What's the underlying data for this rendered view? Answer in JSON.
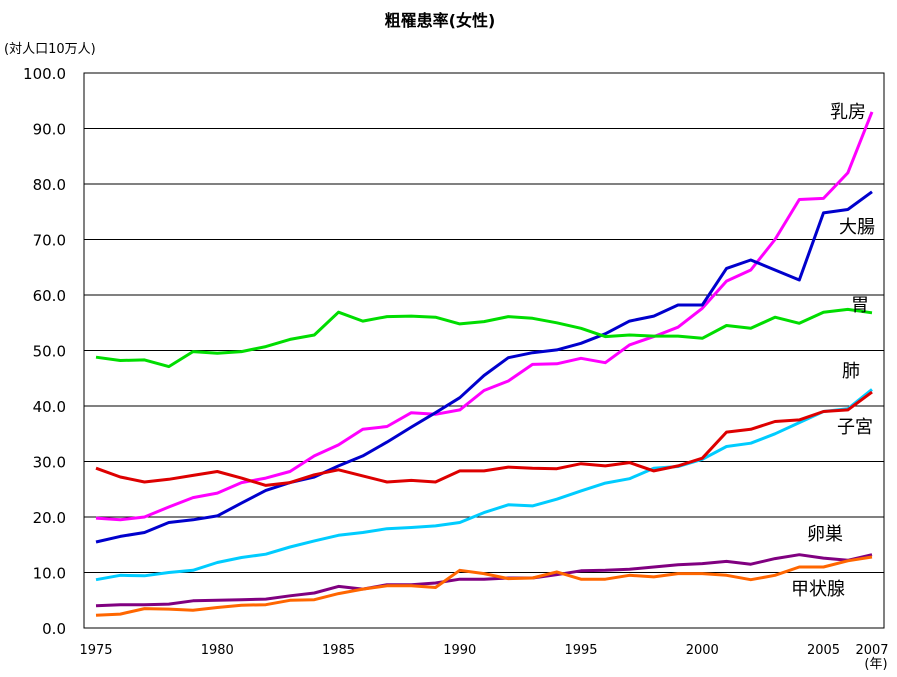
{
  "chart_data": {
    "type": "line",
    "title": "粗罹患率(女性)",
    "ylabel": "(対人口10万人)",
    "xunit": "(年)",
    "ylim": [
      0,
      100
    ],
    "yticks": [
      "0.0",
      "10.0",
      "20.0",
      "30.0",
      "40.0",
      "50.0",
      "60.0",
      "70.0",
      "80.0",
      "90.0",
      "100.0"
    ],
    "xlim": [
      1975,
      2007
    ],
    "xticks": [
      "1975",
      "1980",
      "1985",
      "1990",
      "1995",
      "2000",
      "2005",
      "2007"
    ],
    "grid": true,
    "x": [
      1975,
      1976,
      1977,
      1978,
      1979,
      1980,
      1981,
      1982,
      1983,
      1984,
      1985,
      1986,
      1987,
      1988,
      1989,
      1990,
      1991,
      1992,
      1993,
      1994,
      1995,
      1996,
      1997,
      1998,
      1999,
      2000,
      2001,
      2002,
      2003,
      2004,
      2005,
      2006,
      2007
    ],
    "series": [
      {
        "name": "乳房",
        "color": "#ff00ff",
        "values": [
          19.8,
          19.5,
          20.0,
          21.8,
          23.5,
          24.3,
          26.2,
          27.0,
          28.2,
          31.0,
          33.0,
          35.8,
          36.3,
          38.8,
          38.5,
          39.3,
          42.8,
          44.5,
          47.5,
          47.6,
          48.6,
          47.8,
          51.0,
          52.5,
          54.2,
          57.6,
          62.5,
          64.5,
          70.0,
          77.2,
          77.4,
          82.0,
          93.0
        ]
      },
      {
        "name": "大腸",
        "color": "#0000cc",
        "values": [
          15.5,
          16.5,
          17.2,
          19.0,
          19.5,
          20.2,
          22.5,
          24.8,
          26.2,
          27.2,
          29.2,
          31.0,
          33.5,
          36.2,
          38.8,
          41.5,
          45.5,
          48.7,
          49.6,
          50.1,
          51.3,
          53.0,
          55.3,
          56.2,
          58.2,
          58.2,
          64.8,
          66.3,
          64.5,
          62.7,
          74.8,
          75.4,
          78.6
        ]
      },
      {
        "name": "胃",
        "color": "#00dd00",
        "values": [
          48.8,
          48.2,
          48.3,
          47.1,
          49.8,
          49.5,
          49.8,
          50.7,
          52.0,
          52.8,
          56.9,
          55.3,
          56.1,
          56.2,
          56.0,
          54.8,
          55.2,
          56.1,
          55.8,
          55.0,
          54.0,
          52.5,
          52.8,
          52.6,
          52.6,
          52.2,
          54.5,
          54.0,
          56.0,
          54.9,
          56.9,
          57.4,
          56.8
        ]
      },
      {
        "name": "肺",
        "color": "#00ccff",
        "values": [
          8.7,
          9.5,
          9.4,
          10.0,
          10.4,
          11.8,
          12.7,
          13.3,
          14.6,
          15.7,
          16.7,
          17.2,
          17.9,
          18.1,
          18.4,
          19.0,
          20.8,
          22.2,
          22.0,
          23.2,
          24.7,
          26.1,
          26.9,
          28.8,
          29.1,
          30.4,
          32.7,
          33.3,
          35.0,
          37.0,
          39.0,
          39.5,
          43.0
        ]
      },
      {
        "name": "子宮",
        "color": "#dd0000",
        "values": [
          28.8,
          27.2,
          26.3,
          26.8,
          27.5,
          28.2,
          27.0,
          25.7,
          26.2,
          27.6,
          28.5,
          27.4,
          26.3,
          26.6,
          26.3,
          28.3,
          28.3,
          29.0,
          28.8,
          28.7,
          29.6,
          29.2,
          29.8,
          28.3,
          29.2,
          30.6,
          35.3,
          35.8,
          37.2,
          37.5,
          39.0,
          39.3,
          42.5
        ]
      },
      {
        "name": "卵巣",
        "color": "#800080",
        "values": [
          4.0,
          4.2,
          4.2,
          4.3,
          4.9,
          5.0,
          5.1,
          5.2,
          5.8,
          6.3,
          7.5,
          7.0,
          7.8,
          7.8,
          8.1,
          8.8,
          8.8,
          9.0,
          9.0,
          9.6,
          10.3,
          10.4,
          10.6,
          11.0,
          11.4,
          11.6,
          12.0,
          11.5,
          12.5,
          13.2,
          12.6,
          12.2,
          13.2
        ]
      },
      {
        "name": "甲状腺",
        "color": "#ff6600",
        "values": [
          2.3,
          2.5,
          3.5,
          3.4,
          3.2,
          3.7,
          4.1,
          4.2,
          5.0,
          5.1,
          6.2,
          7.0,
          7.6,
          7.6,
          7.3,
          10.4,
          9.8,
          8.9,
          9.0,
          10.1,
          8.8,
          8.8,
          9.5,
          9.2,
          9.8,
          9.8,
          9.5,
          8.7,
          9.5,
          11.0,
          11.0,
          12.1,
          12.8
        ]
      }
    ]
  }
}
